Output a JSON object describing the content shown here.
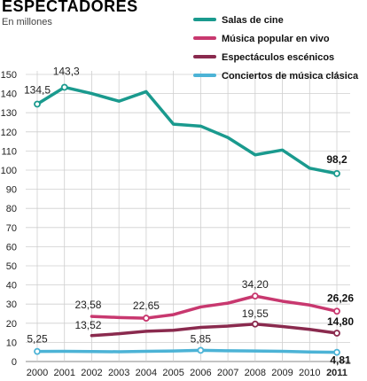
{
  "chart_data": {
    "type": "line",
    "title": "ESPECTADORES",
    "subtitle": "En millones",
    "x": [
      "2000",
      "2001",
      "2002",
      "2003",
      "2004",
      "2005",
      "2006",
      "2007",
      "2008",
      "2009",
      "2010",
      "2011"
    ],
    "xtick_labels": [
      "2000",
      "2001",
      "2002",
      "2003",
      "2004",
      "2005",
      "2006",
      "2007",
      "2008",
      "2009",
      "2010",
      "2011"
    ],
    "ylim": [
      0,
      150
    ],
    "yticks": [
      0,
      10,
      20,
      30,
      40,
      50,
      60,
      70,
      80,
      90,
      100,
      110,
      120,
      130,
      140,
      150
    ],
    "ytick_labels": [
      "0",
      "10",
      "20",
      "30",
      "40",
      "50",
      "60",
      "70",
      "80",
      "90",
      "100",
      "110",
      "120",
      "130",
      "140",
      "150"
    ],
    "grid": true,
    "legend_position": "top-right",
    "series": [
      {
        "name": "Salas de cine",
        "color": "#1a9a8e",
        "values": [
          134.5,
          143.3,
          140,
          136,
          141,
          124,
          123,
          117,
          108,
          110.5,
          101,
          98.2
        ],
        "labels": [
          {
            "index": 0,
            "text": "134,5",
            "bold": false
          },
          {
            "index": 1,
            "text": "143,3",
            "bold": false
          },
          {
            "index": 11,
            "text": "98,2",
            "bold": true
          }
        ],
        "markers": [
          0,
          1,
          11
        ]
      },
      {
        "name": "Música popular en vivo",
        "color": "#c8386f",
        "values": [
          null,
          null,
          23.58,
          23,
          22.65,
          24.5,
          28.5,
          30.5,
          34.2,
          31.5,
          29.5,
          26.26
        ],
        "labels": [
          {
            "index": 2,
            "text": "23,58",
            "bold": false
          },
          {
            "index": 4,
            "text": "22,65",
            "bold": false
          },
          {
            "index": 8,
            "text": "34,20",
            "bold": false
          },
          {
            "index": 11,
            "text": "26,26",
            "bold": true
          }
        ],
        "markers": [
          4,
          8,
          11
        ]
      },
      {
        "name": "Espectáculos escénicos",
        "color": "#8a2a4e",
        "values": [
          null,
          null,
          13.52,
          14.5,
          15.8,
          16.3,
          17.8,
          18.5,
          19.55,
          18.3,
          16.8,
          14.8
        ],
        "labels": [
          {
            "index": 2,
            "text": "13,52",
            "bold": false
          },
          {
            "index": 8,
            "text": "19,55",
            "bold": false
          },
          {
            "index": 11,
            "text": "14,80",
            "bold": true
          }
        ],
        "markers": [
          8,
          11
        ]
      },
      {
        "name": "Conciertos de música clásica",
        "color": "#4cb3d6",
        "values": [
          5.25,
          5.3,
          5.2,
          5.1,
          5.3,
          5.5,
          5.85,
          5.6,
          5.5,
          5.3,
          5.0,
          4.81
        ],
        "labels": [
          {
            "index": 0,
            "text": "5,25",
            "bold": false
          },
          {
            "index": 6,
            "text": "5,85",
            "bold": false
          },
          {
            "index": 11,
            "text": "4,81",
            "bold": true
          }
        ],
        "markers": [
          0,
          6,
          11
        ]
      }
    ]
  }
}
